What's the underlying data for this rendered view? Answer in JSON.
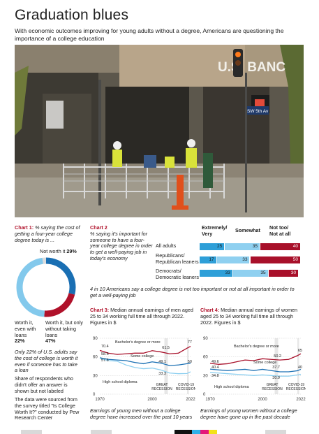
{
  "title": "Graduation blues",
  "subtitle": "With economic outcomes improving for young adults without a degree, Americans are questioning the importance of a college education",
  "photo": {
    "bank_sign": "U.S. BANC",
    "street_sign": "SW 5th Av"
  },
  "chart1": {
    "label": "Chart 1:",
    "heading": "% saying the cost of getting a four-year college degree today is ...",
    "not_worth_label": "Not worth it",
    "not_worth_value": "29%",
    "worth_even_loans_label": "Worth it, even with loans",
    "worth_even_loans_value": "22%",
    "worth_no_loans_label": "Worth it, but only without taking loans",
    "worth_no_loans_value": "47%",
    "note1": "Only 22% of U.S. adults say the cost of college is worth it even if someone has to take a loan",
    "note2": "Share of respondents who didn't offer an answer is shown but not labeled",
    "note3": "The data were sourced from the survey titled \"Is College Worth It?\" conducted by Pew Research Center"
  },
  "chart2": {
    "label": "Chart 2",
    "heading": "% saying it's important for someone to have a four-year college degree in order to get a well-paying job in today's economy",
    "col_headers": [
      "Extremely/ Very",
      "Somewhat",
      "Not too/ Not at all"
    ],
    "rows": [
      "All adults",
      "Republicans/ Republican leaners",
      "Democrats/ Democratic leaners"
    ],
    "footnote": "4 in 10 Americans say a college degree is not too important or not at all important in order to get a well-paying job"
  },
  "chart3": {
    "label": "Chart 3:",
    "heading": "Median annual earnings of men aged 25 to 34 working full time all through 2022. Figures in $",
    "series_labels": [
      "Bachelor's degree or more",
      "Some college",
      "High school diploma"
    ],
    "end_labels": [
      "77",
      "61.5",
      "49.1",
      "50",
      "33.3"
    ],
    "start_labels": [
      "70.4",
      "58.6",
      "57.6"
    ],
    "shade_labels": [
      "GREAT RECESSION",
      "COVID-19 RECESSION"
    ],
    "caption": "Earnings of young men without a college degree have increased over the past 10 years"
  },
  "chart4": {
    "label": "Chart 4:",
    "heading": "Median annual earnings of women aged 25 to 34 working full time all through 2022. Figures in $",
    "series_labels": [
      "Bachelor's degree or more",
      "Some college",
      "High school diploma"
    ],
    "end_labels": [
      "65",
      "50.2",
      "37.7",
      "40",
      "30.9"
    ],
    "start_labels": [
      "49.6",
      "40.4",
      "34.8"
    ],
    "shade_labels": [
      "GREAT RECESSION",
      "COVID-19 RECESSION"
    ],
    "caption": "Earnings of young women without a college degree have gone up in the past decade"
  },
  "chart_data": [
    {
      "type": "pie",
      "title": "% saying the cost of getting a four-year college degree today is ...",
      "categories": [
        "Not worth it",
        "Worth it, even with loans",
        "Worth it, but only without taking loans",
        "No answer"
      ],
      "values": [
        29,
        22,
        47,
        2
      ],
      "colors": [
        "#1a6fb3",
        "#b0112a",
        "#83c9ec",
        "#dddddd"
      ]
    },
    {
      "type": "bar",
      "stacked": true,
      "title": "% saying it's important for someone to have a four-year college degree in order to get a well-paying job in today's economy",
      "categories": [
        "All adults",
        "Republicans/ Republican leaners",
        "Democrats/ Democratic leaners"
      ],
      "series": [
        {
          "name": "Extremely/ Very",
          "values": [
            25,
            17,
            33
          ],
          "color": "#2e9fd8"
        },
        {
          "name": "Somewhat",
          "values": [
            35,
            33,
            35
          ],
          "color": "#8fd0f0"
        },
        {
          "name": "Not too/ Not at all",
          "values": [
            40,
            50,
            30
          ],
          "color": "#a8102a"
        }
      ]
    },
    {
      "type": "line",
      "title": "Median annual earnings of men aged 25 to 34 working full time all through 2022. Figures in $",
      "x": [
        1970,
        1975,
        1980,
        1985,
        1990,
        1995,
        2000,
        2005,
        2010,
        2015,
        2020,
        2022
      ],
      "series": [
        {
          "name": "Bachelor's degree or more",
          "values": [
            70.4,
            66,
            64,
            65,
            66,
            66,
            70,
            68,
            65,
            66,
            74,
            77
          ],
          "color": "#a8102a"
        },
        {
          "name": "Some college",
          "values": [
            58.6,
            56,
            55,
            54,
            51,
            49,
            52,
            50,
            46,
            47,
            49.1,
            50
          ],
          "color": "#1a6fb3"
        },
        {
          "name": "High school diploma",
          "values": [
            57.6,
            54,
            53,
            47,
            43,
            41,
            42,
            39,
            34,
            33,
            33.3,
            36
          ],
          "color": "#8fd0f0"
        }
      ],
      "ylim": [
        0,
        90
      ],
      "yticks": [
        0,
        30,
        60,
        90
      ],
      "xticks": [
        1970,
        2000,
        2022
      ],
      "shaded": [
        [
          2007,
          2009
        ],
        [
          2020,
          2021
        ]
      ]
    },
    {
      "type": "line",
      "title": "Median annual earnings of women aged 25 to 34 working full time all through 2022. Figures in $",
      "x": [
        1970,
        1975,
        1980,
        1985,
        1990,
        1995,
        2000,
        2005,
        2010,
        2015,
        2020,
        2022
      ],
      "series": [
        {
          "name": "Bachelor's degree or more",
          "values": [
            49.6,
            48,
            49,
            52,
            55,
            54,
            57,
            56,
            55,
            56,
            62,
            65
          ],
          "color": "#a8102a"
        },
        {
          "name": "Some college",
          "values": [
            40.4,
            39,
            38,
            39,
            40,
            38,
            40,
            38,
            36,
            36,
            37.7,
            40
          ],
          "color": "#1a6fb3"
        },
        {
          "name": "High school diploma",
          "values": [
            34.8,
            34,
            33,
            32,
            31,
            30,
            31,
            30,
            29,
            29,
            30.9,
            32
          ],
          "color": "#8fd0f0"
        }
      ],
      "ylim": [
        0,
        90
      ],
      "yticks": [
        0,
        30,
        60,
        90
      ],
      "xticks": [
        1970,
        2000,
        2022
      ],
      "shaded": [
        [
          2007,
          2009
        ],
        [
          2020,
          2021
        ]
      ]
    }
  ]
}
